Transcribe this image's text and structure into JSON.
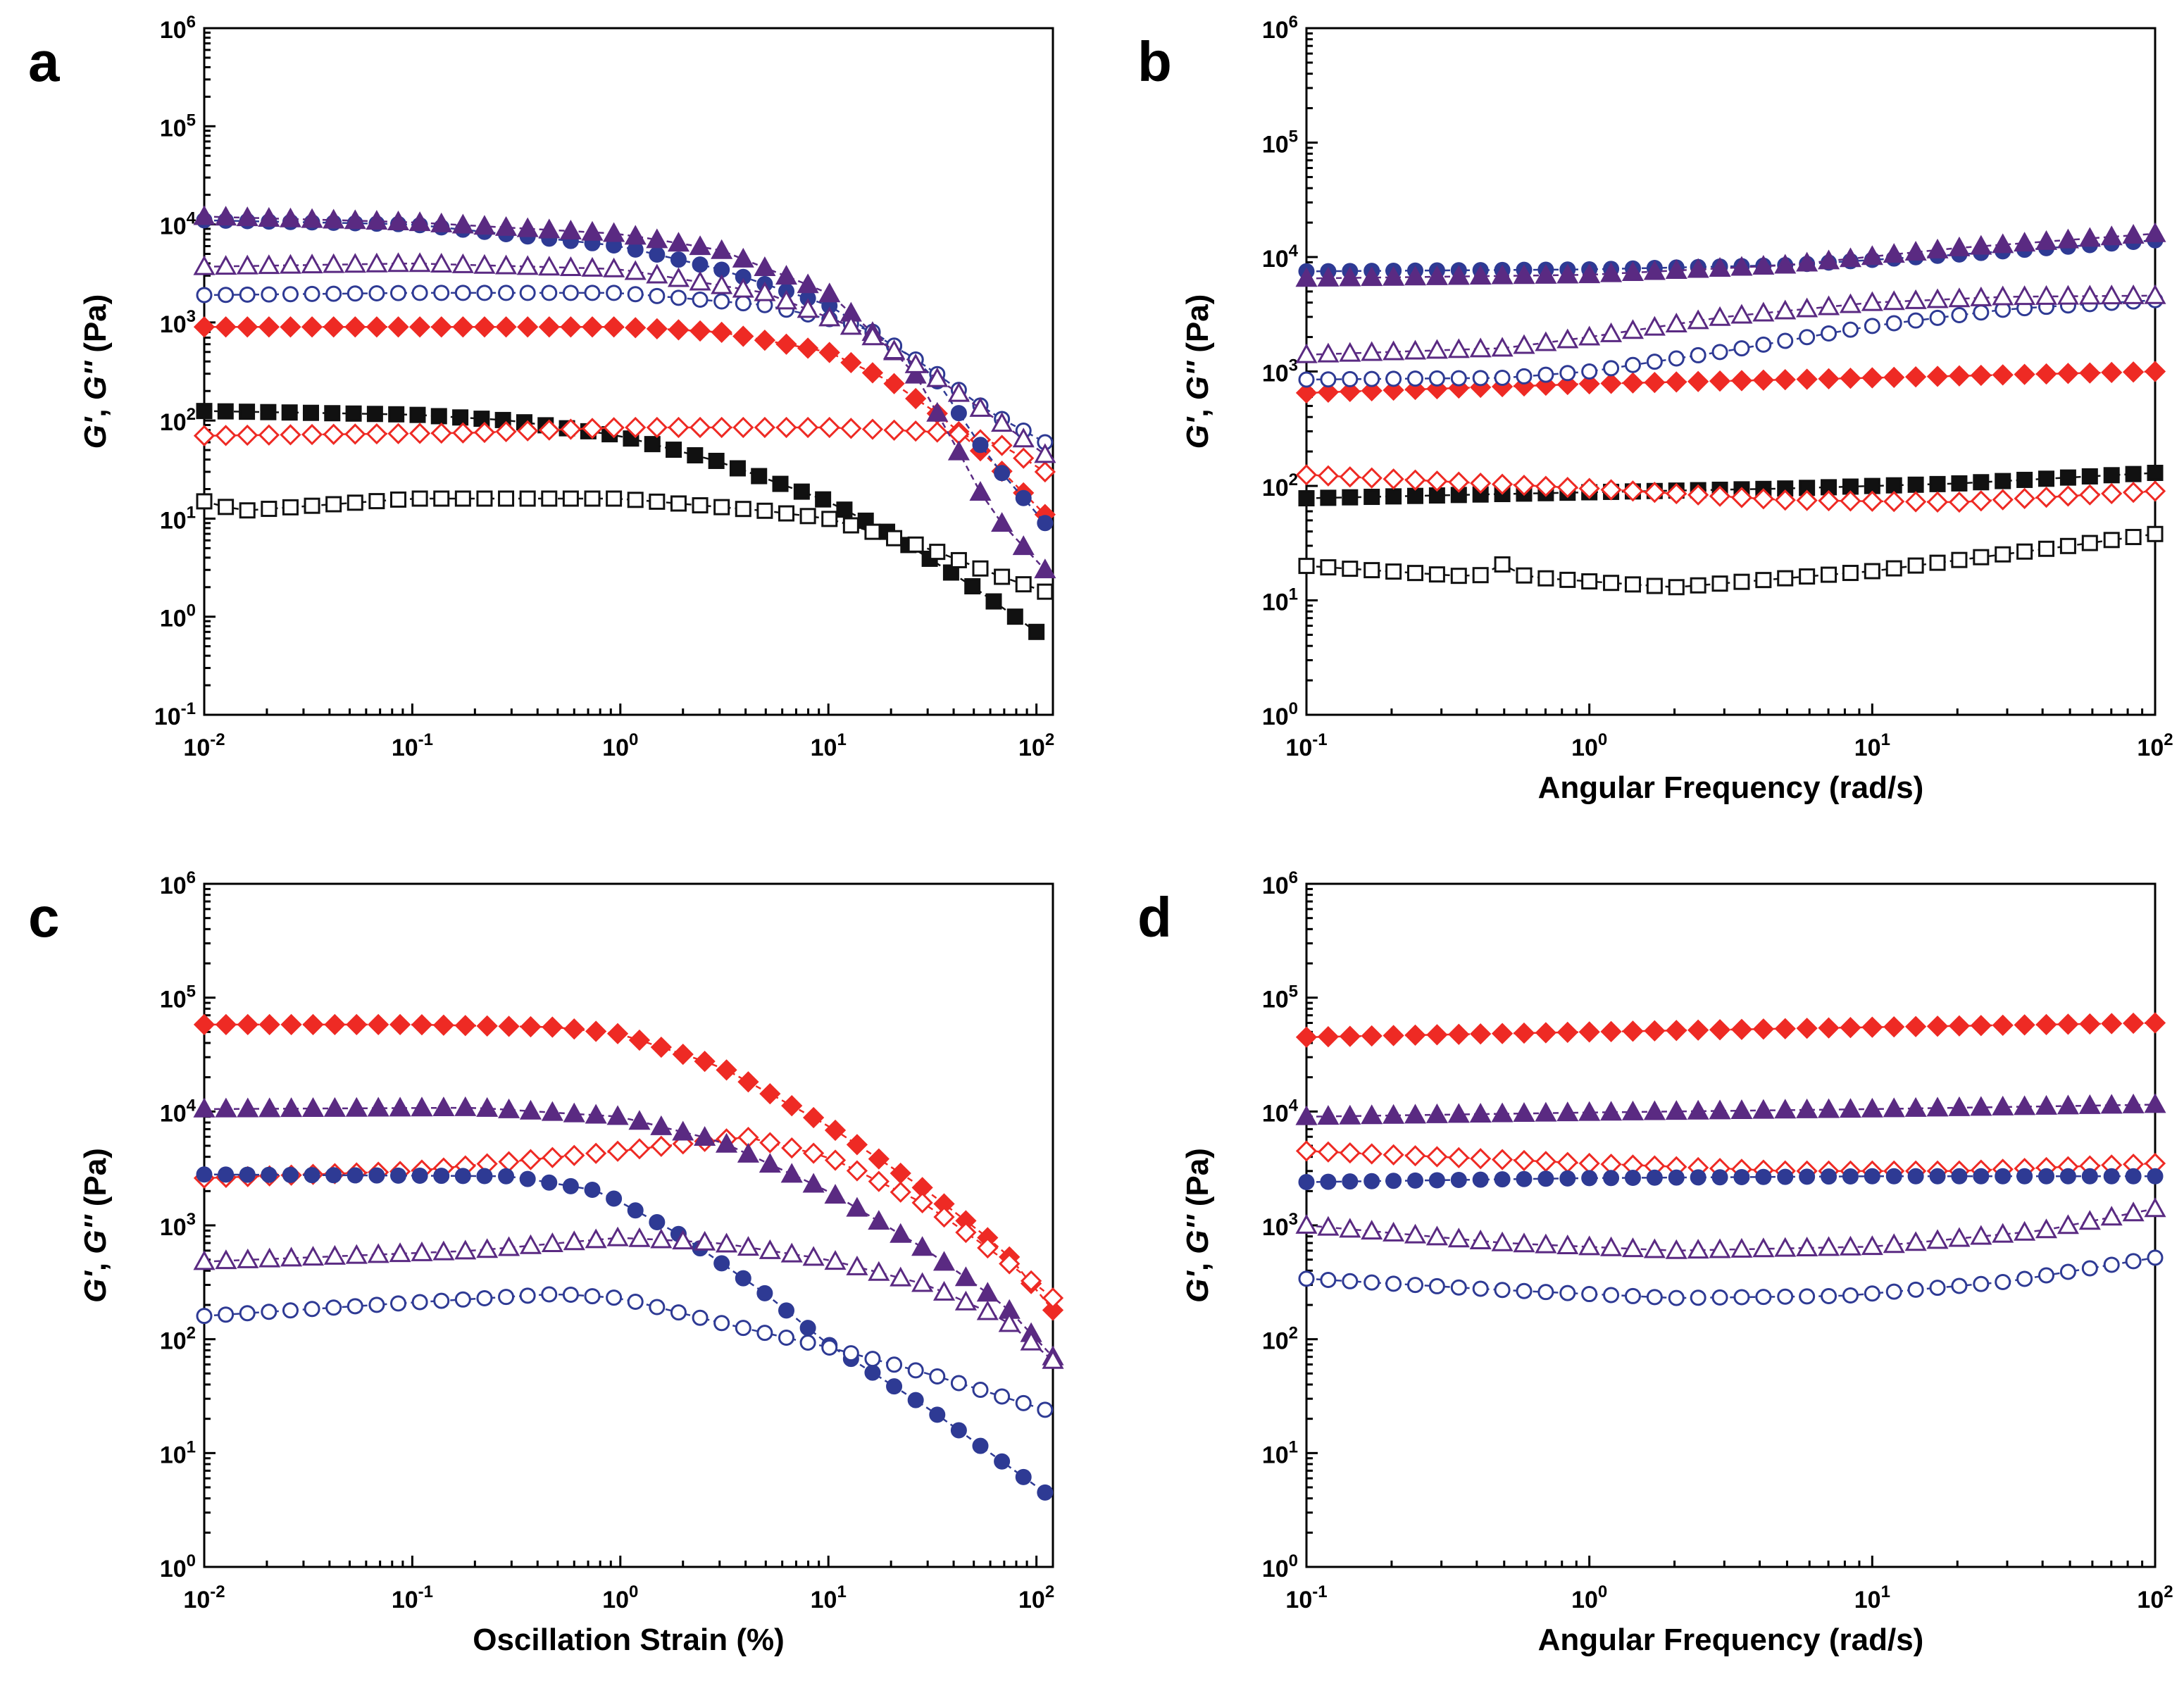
{
  "figure": {
    "panel_letters": [
      "a",
      "b",
      "c",
      "d"
    ]
  },
  "series_styles": [
    {
      "key": "black_sq_filled",
      "marker": "square",
      "filled": true,
      "color": "#111111"
    },
    {
      "key": "black_sq_open",
      "marker": "square",
      "filled": false,
      "color": "#111111"
    },
    {
      "key": "red_dia_filled",
      "marker": "diamond",
      "filled": true,
      "color": "#ee2a24"
    },
    {
      "key": "red_dia_open",
      "marker": "diamond",
      "filled": false,
      "color": "#ee2a24"
    },
    {
      "key": "blue_circ_filled",
      "marker": "circle",
      "filled": true,
      "color": "#2e3a94"
    },
    {
      "key": "blue_circ_open",
      "marker": "circle",
      "filled": false,
      "color": "#2e3a94"
    },
    {
      "key": "purple_tri_filled",
      "marker": "triangle",
      "filled": true,
      "color": "#5a2a82"
    },
    {
      "key": "purple_tri_open",
      "marker": "triangle",
      "filled": false,
      "color": "#5a2a82"
    }
  ],
  "chart_data": [
    {
      "panel": "a",
      "type": "scatter",
      "xscale": "log",
      "yscale": "log",
      "xlim": [
        0.01,
        120
      ],
      "ylim": [
        0.1,
        1000000
      ],
      "xlabel": "",
      "ylabel_parts": [
        "G'",
        ", ",
        "G''",
        " (Pa)"
      ],
      "xticks": [
        "10^-2",
        "10^-1",
        "10^0",
        "10^1",
        "10^2"
      ],
      "yticks": [
        "10^-1",
        "10^0",
        "10^1",
        "10^2",
        "10^3",
        "10^4",
        "10^5",
        "10^6"
      ],
      "series": [
        {
          "style": "black_sq_filled",
          "points": [
            [
              0.01,
              125
            ],
            [
              0.1,
              115
            ],
            [
              0.3,
              100
            ],
            [
              1,
              70
            ],
            [
              3,
              38
            ],
            [
              10,
              15
            ],
            [
              20,
              7
            ],
            [
              50,
              2
            ],
            [
              100,
              0.7
            ]
          ]
        },
        {
          "style": "black_sq_open",
          "points": [
            [
              0.01,
              15
            ],
            [
              0.015,
              12
            ],
            [
              0.1,
              16
            ],
            [
              1,
              16
            ],
            [
              5,
              12
            ],
            [
              10,
              10
            ],
            [
              30,
              5
            ],
            [
              70,
              2.5
            ],
            [
              110,
              1.8
            ]
          ]
        },
        {
          "style": "red_dia_filled",
          "points": [
            [
              0.01,
              900
            ],
            [
              1,
              900
            ],
            [
              3,
              800
            ],
            [
              10,
              500
            ],
            [
              20,
              250
            ],
            [
              35,
              110
            ],
            [
              60,
              40
            ],
            [
              110,
              11
            ]
          ]
        },
        {
          "style": "red_dia_open",
          "points": [
            [
              0.01,
              70
            ],
            [
              0.2,
              75
            ],
            [
              1,
              85
            ],
            [
              10,
              85
            ],
            [
              20,
              80
            ],
            [
              40,
              75
            ],
            [
              70,
              55
            ],
            [
              110,
              30
            ]
          ]
        },
        {
          "style": "blue_circ_filled",
          "points": [
            [
              0.01,
              11000
            ],
            [
              0.1,
              10000
            ],
            [
              1,
              6000
            ],
            [
              3,
              3500
            ],
            [
              10,
              1500
            ],
            [
              30,
              350
            ],
            [
              60,
              40
            ],
            [
              110,
              9
            ]
          ]
        },
        {
          "style": "blue_circ_open",
          "points": [
            [
              0.01,
              1900
            ],
            [
              0.1,
              2000
            ],
            [
              1,
              2000
            ],
            [
              5,
              1500
            ],
            [
              15,
              900
            ],
            [
              30,
              350
            ],
            [
              60,
              120
            ],
            [
              110,
              60
            ]
          ]
        },
        {
          "style": "purple_tri_filled",
          "points": [
            [
              0.01,
              12000
            ],
            [
              0.1,
              10500
            ],
            [
              1,
              8000
            ],
            [
              3,
              5500
            ],
            [
              10,
              2000
            ],
            [
              25,
              350
            ],
            [
              40,
              60
            ],
            [
              60,
              12
            ],
            [
              110,
              3
            ]
          ]
        },
        {
          "style": "purple_tri_open",
          "points": [
            [
              0.01,
              3700
            ],
            [
              0.1,
              4000
            ],
            [
              1,
              3500
            ],
            [
              5,
              2000
            ],
            [
              15,
              800
            ],
            [
              35,
              250
            ],
            [
              70,
              90
            ],
            [
              110,
              45
            ]
          ]
        }
      ]
    },
    {
      "panel": "b",
      "type": "scatter",
      "xscale": "log",
      "yscale": "log",
      "xlim": [
        0.1,
        100
      ],
      "ylim": [
        1,
        1000000
      ],
      "xlabel": "Angular Frequency (rad/s)",
      "ylabel_parts": [
        "G'",
        ", ",
        "G''",
        " (Pa)"
      ],
      "xticks": [
        "10^-1",
        "10^0",
        "10^1",
        "10^2"
      ],
      "yticks": [
        "10^0",
        "10^1",
        "10^2",
        "10^3",
        "10^4",
        "10^5",
        "10^6"
      ],
      "series": [
        {
          "style": "black_sq_filled",
          "points": [
            [
              0.1,
              78
            ],
            [
              0.5,
              85
            ],
            [
              1,
              88
            ],
            [
              5,
              95
            ],
            [
              20,
              105
            ],
            [
              100,
              130
            ]
          ]
        },
        {
          "style": "black_sq_open",
          "points": [
            [
              0.1,
              20
            ],
            [
              0.4,
              16
            ],
            [
              0.5,
              21
            ],
            [
              0.6,
              16
            ],
            [
              2,
              13
            ],
            [
              10,
              18
            ],
            [
              50,
              30
            ],
            [
              100,
              38
            ]
          ]
        },
        {
          "style": "red_dia_filled",
          "points": [
            [
              0.1,
              650
            ],
            [
              1,
              780
            ],
            [
              10,
              880
            ],
            [
              100,
              1000
            ]
          ]
        },
        {
          "style": "red_dia_open",
          "points": [
            [
              0.1,
              125
            ],
            [
              1,
              95
            ],
            [
              5,
              75
            ],
            [
              20,
              72
            ],
            [
              100,
              90
            ]
          ]
        },
        {
          "style": "blue_circ_filled",
          "points": [
            [
              0.1,
              7500
            ],
            [
              1,
              7800
            ],
            [
              5,
              8500
            ],
            [
              20,
              10500
            ],
            [
              100,
              14000
            ]
          ]
        },
        {
          "style": "blue_circ_open",
          "points": [
            [
              0.1,
              850
            ],
            [
              0.5,
              880
            ],
            [
              1,
              1000
            ],
            [
              3,
              1500
            ],
            [
              10,
              2500
            ],
            [
              30,
              3500
            ],
            [
              100,
              4200
            ]
          ]
        },
        {
          "style": "purple_tri_filled",
          "points": [
            [
              0.1,
              6500
            ],
            [
              1,
              7000
            ],
            [
              5,
              8500
            ],
            [
              20,
              12000
            ],
            [
              100,
              16000
            ]
          ]
        },
        {
          "style": "purple_tri_open",
          "points": [
            [
              0.1,
              1400
            ],
            [
              0.5,
              1600
            ],
            [
              1,
              2000
            ],
            [
              3,
              3000
            ],
            [
              10,
              4000
            ],
            [
              30,
              4500
            ],
            [
              100,
              4600
            ]
          ]
        }
      ]
    },
    {
      "panel": "c",
      "type": "scatter",
      "xscale": "log",
      "yscale": "log",
      "xlim": [
        0.01,
        120
      ],
      "ylim": [
        1,
        1000000
      ],
      "xlabel": "Oscillation Strain (%)",
      "ylabel_parts": [
        "G'",
        ", ",
        "G''",
        " (Pa)"
      ],
      "xticks": [
        "10^-2",
        "10^-1",
        "10^0",
        "10^1",
        "10^2"
      ],
      "yticks": [
        "10^0",
        "10^1",
        "10^2",
        "10^3",
        "10^4",
        "10^5",
        "10^6"
      ],
      "series": [
        {
          "style": "red_dia_filled",
          "points": [
            [
              0.01,
              58000
            ],
            [
              0.1,
              58000
            ],
            [
              0.5,
              55000
            ],
            [
              1,
              48000
            ],
            [
              3,
              25000
            ],
            [
              10,
              7500
            ],
            [
              30,
              2000
            ],
            [
              70,
              600
            ],
            [
              120,
              180
            ]
          ]
        },
        {
          "style": "red_dia_open",
          "points": [
            [
              0.01,
              2600
            ],
            [
              0.1,
              3000
            ],
            [
              1,
              4500
            ],
            [
              4,
              6000
            ],
            [
              10,
              4000
            ],
            [
              30,
              1500
            ],
            [
              70,
              500
            ],
            [
              120,
              230
            ]
          ]
        },
        {
          "style": "blue_circ_filled",
          "points": [
            [
              0.01,
              2800
            ],
            [
              0.3,
              2700
            ],
            [
              0.8,
              2000
            ],
            [
              2,
              800
            ],
            [
              5,
              250
            ],
            [
              10,
              90
            ],
            [
              30,
              25
            ],
            [
              60,
              10
            ],
            [
              110,
              4.5
            ]
          ]
        },
        {
          "style": "blue_circ_open",
          "points": [
            [
              0.01,
              160
            ],
            [
              0.1,
              210
            ],
            [
              0.5,
              250
            ],
            [
              1,
              230
            ],
            [
              3,
              140
            ],
            [
              10,
              85
            ],
            [
              30,
              50
            ],
            [
              110,
              24
            ]
          ]
        },
        {
          "style": "purple_tri_filled",
          "points": [
            [
              0.01,
              10500
            ],
            [
              0.2,
              10800
            ],
            [
              1,
              9000
            ],
            [
              3,
              5500
            ],
            [
              10,
              2000
            ],
            [
              30,
              600
            ],
            [
              70,
              200
            ],
            [
              120,
              70
            ]
          ]
        },
        {
          "style": "purple_tri_open",
          "points": [
            [
              0.01,
              480
            ],
            [
              0.2,
              600
            ],
            [
              1,
              780
            ],
            [
              3,
              700
            ],
            [
              10,
              500
            ],
            [
              30,
              300
            ],
            [
              70,
              150
            ],
            [
              120,
              65
            ]
          ]
        }
      ]
    },
    {
      "panel": "d",
      "type": "scatter",
      "xscale": "log",
      "yscale": "log",
      "xlim": [
        0.1,
        100
      ],
      "ylim": [
        1,
        1000000
      ],
      "xlabel": "Angular Frequency (rad/s)",
      "ylabel_parts": [
        "G'",
        ", ",
        "G''",
        " (Pa)"
      ],
      "xticks": [
        "10^-1",
        "10^0",
        "10^1",
        "10^2"
      ],
      "yticks": [
        "10^0",
        "10^1",
        "10^2",
        "10^3",
        "10^4",
        "10^5",
        "10^6"
      ],
      "series": [
        {
          "style": "red_dia_filled",
          "points": [
            [
              0.1,
              45000
            ],
            [
              1,
              50000
            ],
            [
              10,
              55000
            ],
            [
              100,
              60000
            ]
          ]
        },
        {
          "style": "red_dia_open",
          "points": [
            [
              0.1,
              4500
            ],
            [
              1,
              3500
            ],
            [
              5,
              3000
            ],
            [
              20,
              3000
            ],
            [
              100,
              3500
            ]
          ]
        },
        {
          "style": "blue_circ_filled",
          "points": [
            [
              0.1,
              2400
            ],
            [
              1,
              2600
            ],
            [
              10,
              2700
            ],
            [
              100,
              2700
            ]
          ]
        },
        {
          "style": "blue_circ_open",
          "points": [
            [
              0.1,
              340
            ],
            [
              0.5,
              270
            ],
            [
              2,
              230
            ],
            [
              8,
              240
            ],
            [
              30,
              320
            ],
            [
              100,
              520
            ]
          ]
        },
        {
          "style": "purple_tri_filled",
          "points": [
            [
              0.1,
              9000
            ],
            [
              1,
              9800
            ],
            [
              10,
              10500
            ],
            [
              100,
              11500
            ]
          ]
        },
        {
          "style": "purple_tri_open",
          "points": [
            [
              0.1,
              1000
            ],
            [
              0.5,
              700
            ],
            [
              2,
              600
            ],
            [
              10,
              650
            ],
            [
              40,
              900
            ],
            [
              100,
              1400
            ]
          ]
        }
      ]
    }
  ]
}
